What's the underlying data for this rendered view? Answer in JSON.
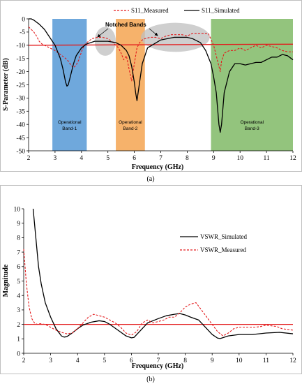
{
  "chart_data": [
    {
      "id": "a",
      "type": "line",
      "caption": "(a)",
      "title": "",
      "xlabel": "Frequency (GHz)",
      "ylabel": "S-Parameter (dB)",
      "xlim": [
        2,
        12
      ],
      "ylim": [
        -50,
        0
      ],
      "xticks": [
        "2",
        "3",
        "4",
        "5",
        "6",
        "7",
        "8",
        "9",
        "10",
        "11",
        "12"
      ],
      "yticks": [
        "0",
        "-5",
        "-10",
        "-15",
        "-20",
        "-25",
        "-30",
        "-35",
        "-40",
        "-45",
        "-50"
      ],
      "grid": false,
      "legend_position": "top",
      "reference_line": {
        "y": -10,
        "color": "#e31a1c"
      },
      "bands": [
        {
          "x": [
            2.9,
            4.2
          ],
          "color": "#6fa8dc",
          "label_lines": [
            "Operational",
            "Band-1"
          ]
        },
        {
          "x": [
            5.3,
            6.4
          ],
          "color": "#f6b26b",
          "label_lines": [
            "Operational",
            "Band-2"
          ]
        },
        {
          "x": [
            8.9,
            12.0
          ],
          "color": "#93c47d",
          "label_lines": [
            "Operational",
            "Band-3"
          ]
        }
      ],
      "notch_label": "Notched Bands",
      "series": [
        {
          "name": "S11_Measured",
          "color": "#e31a1c",
          "dash": true,
          "x": [
            2,
            2.1,
            2.2,
            2.3,
            2.4,
            2.5,
            2.6,
            2.7,
            2.8,
            2.9,
            3.0,
            3.2,
            3.4,
            3.5,
            3.6,
            3.7,
            3.8,
            3.9,
            4.0,
            4.1,
            4.2,
            4.4,
            4.6,
            4.8,
            5.0,
            5.2,
            5.4,
            5.5,
            5.6,
            5.7,
            5.8,
            5.9,
            6.0,
            6.1,
            6.2,
            6.3,
            6.4,
            6.6,
            6.8,
            7.0,
            7.2,
            7.4,
            7.6,
            7.8,
            8.0,
            8.2,
            8.4,
            8.6,
            8.8,
            9.0,
            9.1,
            9.2,
            9.25,
            9.3,
            9.4,
            9.6,
            9.8,
            10.0,
            10.2,
            10.4,
            10.6,
            10.8,
            11.0,
            11.2,
            11.4,
            11.6,
            11.8,
            12.0
          ],
          "values": [
            -3,
            -4,
            -5,
            -6.5,
            -8.5,
            -9.5,
            -10,
            -10.5,
            -11,
            -11.5,
            -12,
            -13.5,
            -15,
            -16,
            -17.5,
            -18.5,
            -17.5,
            -15.5,
            -12.5,
            -10,
            -9,
            -7.5,
            -7,
            -7,
            -7.5,
            -9,
            -11,
            -13,
            -15.5,
            -14,
            -19,
            -23.5,
            -17,
            -11,
            -9,
            -8,
            -7.5,
            -7,
            -7,
            -7.5,
            -6.5,
            -6,
            -6,
            -6,
            -6.5,
            -5.5,
            -5.5,
            -5.5,
            -5.5,
            -10,
            -14,
            -18,
            -20,
            -16,
            -13,
            -12,
            -12,
            -11,
            -12,
            -11,
            -10,
            -11,
            -10,
            -10.5,
            -11,
            -12,
            -12.5,
            -12.5
          ]
        },
        {
          "name": "S11_Simulated",
          "color": "#000000",
          "dash": false,
          "x": [
            2,
            2.1,
            2.2,
            2.4,
            2.6,
            2.8,
            3.0,
            3.2,
            3.3,
            3.4,
            3.45,
            3.5,
            3.6,
            3.7,
            3.8,
            4.0,
            4.2,
            4.5,
            5.0,
            5.3,
            5.5,
            5.7,
            5.8,
            5.9,
            6.0,
            6.05,
            6.1,
            6.2,
            6.3,
            6.5,
            7.0,
            7.5,
            8.0,
            8.2,
            8.5,
            8.7,
            8.9,
            9.0,
            9.1,
            9.15,
            9.2,
            9.25,
            9.3,
            9.4,
            9.6,
            9.8,
            10.0,
            10.2,
            10.4,
            10.6,
            10.8,
            11.0,
            11.2,
            11.4,
            11.6,
            11.8,
            12.0
          ],
          "values": [
            0,
            0,
            -0.5,
            -2,
            -4,
            -7,
            -10,
            -15,
            -19,
            -24,
            -25.5,
            -25,
            -21,
            -17,
            -14,
            -11,
            -9.5,
            -8.5,
            -8.5,
            -9,
            -10,
            -12,
            -14,
            -18,
            -24,
            -28,
            -31,
            -24,
            -17,
            -11,
            -8,
            -7,
            -7,
            -7.5,
            -9,
            -12,
            -17,
            -22,
            -28,
            -34,
            -40,
            -43,
            -40,
            -28,
            -20,
            -17,
            -17,
            -17.5,
            -17,
            -16.5,
            -16.5,
            -15.5,
            -14.5,
            -14.5,
            -13.5,
            -14,
            -15.5
          ]
        }
      ]
    },
    {
      "id": "b",
      "type": "line",
      "caption": "(b)",
      "title": "",
      "xlabel": "Frequency (GHz)",
      "ylabel": "Magnitude",
      "xlim": [
        2,
        12
      ],
      "ylim": [
        0,
        10
      ],
      "xticks": [
        "2",
        "3",
        "4",
        "5",
        "6",
        "7",
        "8",
        "9",
        "10",
        "11",
        "12"
      ],
      "yticks": [
        "0",
        "1",
        "2",
        "3",
        "4",
        "5",
        "6",
        "7",
        "8",
        "9",
        "10"
      ],
      "grid": false,
      "legend_position": "right",
      "reference_line": {
        "y": 2,
        "color": "#e31a1c"
      },
      "series": [
        {
          "name": "VSWR_Simulated",
          "color": "#000000",
          "dash": false,
          "x": [
            2.35,
            2.45,
            2.55,
            2.65,
            2.8,
            3.0,
            3.2,
            3.4,
            3.5,
            3.6,
            3.8,
            4.0,
            4.2,
            4.5,
            4.8,
            5.0,
            5.2,
            5.5,
            5.8,
            6.0,
            6.1,
            6.2,
            6.4,
            6.6,
            7.0,
            7.3,
            7.6,
            7.8,
            8.0,
            8.2,
            8.5,
            8.8,
            9.0,
            9.2,
            9.3,
            9.4,
            9.6,
            9.8,
            10.0,
            10.5,
            11.0,
            11.5,
            12.0
          ],
          "values": [
            10,
            8,
            6,
            4.8,
            3.5,
            2.5,
            1.7,
            1.2,
            1.12,
            1.15,
            1.4,
            1.7,
            1.95,
            2.15,
            2.25,
            2.2,
            2.0,
            1.6,
            1.2,
            1.07,
            1.1,
            1.3,
            1.7,
            2.1,
            2.4,
            2.6,
            2.7,
            2.75,
            2.65,
            2.5,
            2.3,
            1.7,
            1.3,
            1.05,
            1.02,
            1.08,
            1.2,
            1.25,
            1.3,
            1.3,
            1.4,
            1.45,
            1.35
          ]
        },
        {
          "name": "VSWR_Measured",
          "color": "#e31a1c",
          "dash": true,
          "x": [
            2.0,
            2.1,
            2.2,
            2.3,
            2.4,
            2.5,
            2.6,
            2.8,
            3.0,
            3.2,
            3.4,
            3.6,
            3.8,
            4.0,
            4.2,
            4.4,
            4.6,
            4.8,
            5.0,
            5.2,
            5.4,
            5.6,
            5.8,
            6.0,
            6.2,
            6.4,
            6.6,
            6.8,
            7.0,
            7.2,
            7.4,
            7.6,
            7.8,
            8.0,
            8.2,
            8.4,
            8.6,
            8.8,
            9.0,
            9.2,
            9.4,
            9.6,
            9.8,
            10.0,
            10.2,
            10.4,
            10.6,
            10.8,
            11.0,
            11.2,
            11.4,
            11.6,
            11.8,
            12.0
          ],
          "values": [
            7.2,
            4.8,
            3.2,
            2.4,
            2.1,
            2.0,
            2.05,
            2.0,
            1.8,
            1.6,
            1.45,
            1.35,
            1.4,
            1.7,
            2.1,
            2.5,
            2.7,
            2.6,
            2.5,
            2.3,
            2.1,
            1.8,
            1.4,
            1.25,
            1.5,
            2.1,
            2.3,
            2.1,
            2.2,
            2.3,
            2.5,
            2.5,
            2.8,
            3.2,
            3.4,
            3.5,
            3.0,
            2.5,
            2.0,
            1.5,
            1.2,
            1.4,
            1.7,
            1.8,
            1.8,
            1.8,
            1.8,
            1.85,
            1.95,
            1.9,
            1.85,
            1.7,
            1.65,
            1.6
          ]
        }
      ]
    }
  ]
}
